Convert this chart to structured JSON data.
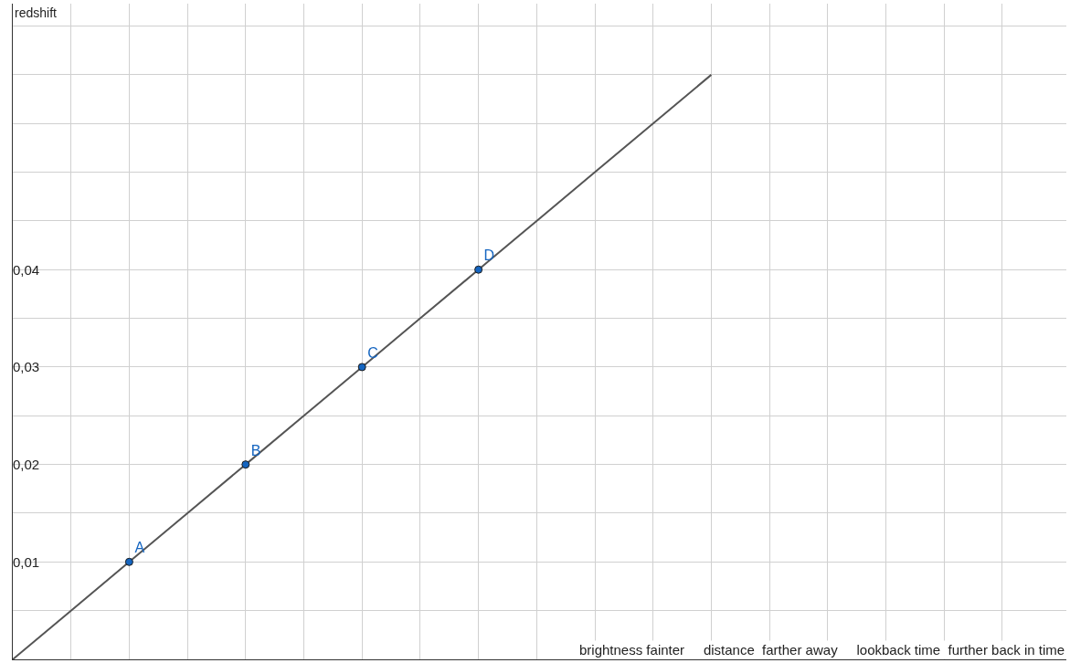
{
  "chart_data": {
    "type": "line",
    "xlabel": "brightness fainter     distance  farther away     lookback time  further back in time",
    "ylabel": "redshift",
    "categories": [
      null,
      null,
      null,
      null,
      null,
      null,
      null,
      null,
      null,
      null,
      null,
      null,
      null,
      null,
      null,
      null,
      null,
      null
    ],
    "series": [
      {
        "color": "#555555",
        "values": [
          0,
          0.005,
          0.01,
          0.015,
          0.02,
          0.025,
          0.03,
          0.035,
          0.04,
          0.045,
          0.05,
          0.055,
          0.06,
          null,
          null,
          null,
          null,
          null
        ]
      },
      {
        "type": "scatter",
        "marker": "circle",
        "color": "#1565c0",
        "values": [
          null,
          null,
          0.01,
          null,
          0.02,
          null,
          0.03,
          null,
          0.04,
          null,
          null,
          null,
          null,
          null,
          null,
          null,
          null,
          null
        ],
        "value_labels": [
          null,
          null,
          "A",
          null,
          "B",
          null,
          "C",
          null,
          "D",
          null,
          null,
          null,
          null,
          null,
          null,
          null,
          null,
          null
        ]
      }
    ],
    "ylim": [
      0,
      0.0673
    ],
    "yticks": [
      {
        "value": 0.005,
        "label": null
      },
      {
        "value": 0.01,
        "label": "0,01"
      },
      {
        "value": 0.015,
        "label": null
      },
      {
        "value": 0.02,
        "label": "0,02"
      },
      {
        "value": 0.025,
        "label": null
      },
      {
        "value": 0.03,
        "label": "0,03"
      },
      {
        "value": 0.035,
        "label": null
      },
      {
        "value": 0.04,
        "label": "0,04"
      },
      {
        "value": 0.045,
        "label": null
      },
      {
        "value": 0.05,
        "label": null
      },
      {
        "value": 0.055,
        "label": null
      },
      {
        "value": 0.06,
        "label": null
      },
      {
        "value": 0.065,
        "label": null
      }
    ],
    "grid": true
  }
}
